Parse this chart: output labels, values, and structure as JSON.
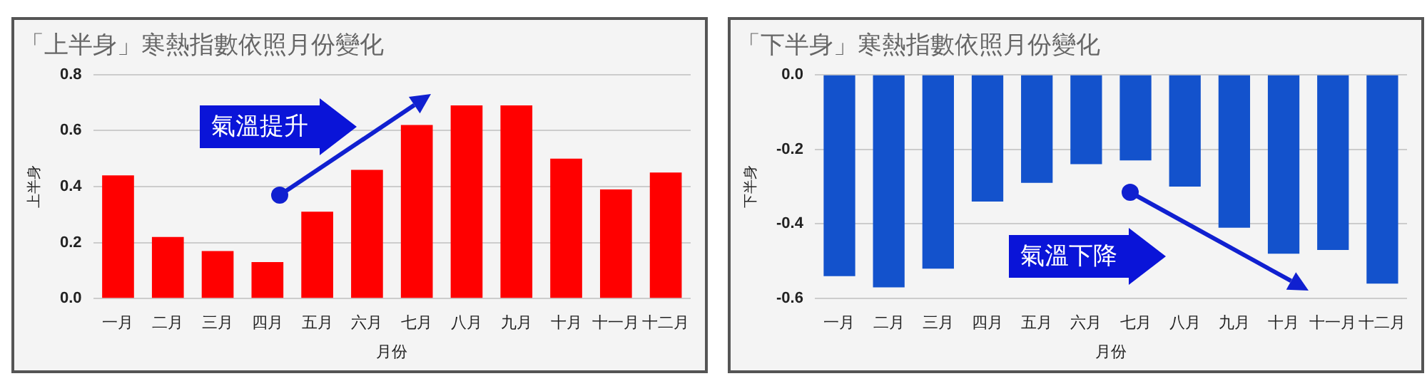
{
  "chart_data": [
    {
      "type": "bar",
      "title": "「上半身」寒熱指數依照月份變化",
      "xlabel": "月份",
      "ylabel": "上半身",
      "categories": [
        "一月",
        "二月",
        "三月",
        "四月",
        "五月",
        "六月",
        "七月",
        "八月",
        "九月",
        "十月",
        "十一月",
        "十二月"
      ],
      "values": [
        0.44,
        0.22,
        0.17,
        0.13,
        0.31,
        0.46,
        0.62,
        0.69,
        0.69,
        0.5,
        0.39,
        0.45
      ],
      "color": "#ff0000",
      "ylim": [
        0,
        0.8
      ],
      "yticks": [
        {
          "value": 0,
          "label": "0.0"
        },
        0.2,
        0.4,
        0.6,
        0.8
      ],
      "grid": "y",
      "annotations": [
        "氣溫提升"
      ]
    },
    {
      "type": "bar",
      "title": "「下半身」寒熱指數依照月份變化",
      "xlabel": "月份",
      "ylabel": "下半身",
      "categories": [
        "一月",
        "二月",
        "三月",
        "四月",
        "五月",
        "六月",
        "七月",
        "八月",
        "九月",
        "十月",
        "十一月",
        "十二月"
      ],
      "values": [
        -0.54,
        -0.57,
        -0.52,
        -0.34,
        -0.29,
        -0.24,
        -0.23,
        -0.3,
        -0.41,
        -0.48,
        -0.47,
        -0.56
      ],
      "color": "#1352cc",
      "ylim": [
        -0.6,
        0
      ],
      "yticks": [
        -0.6,
        -0.4,
        -0.2,
        {
          "value": 0,
          "label": "0.0"
        }
      ],
      "grid": "y",
      "annotations": [
        "氣溫下降"
      ]
    }
  ]
}
